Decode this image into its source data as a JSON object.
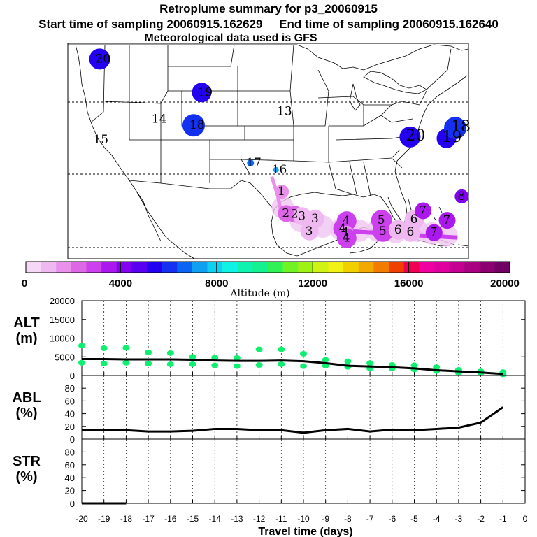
{
  "header": {
    "title": "Retroplume summary for p3_20060915",
    "sampling": "Start time of sampling 20060915.162629     End time of sampling 20060915.162640",
    "met": "Meteorological data used is GFS"
  },
  "colors": {
    "colorbar": [
      "#f6d8f6",
      "#f0b8f0",
      "#e890ea",
      "#dc68e6",
      "#cc40ee",
      "#aa18ee",
      "#8400f0",
      "#5a00f0",
      "#2400f0",
      "#1430f0",
      "#0a66f2",
      "#10a0f2",
      "#10d0f2",
      "#10f2e4",
      "#10f2b0",
      "#14f290",
      "#30f254",
      "#70f224",
      "#a0f214",
      "#d0f214",
      "#f2f014",
      "#f2d000",
      "#f2a800",
      "#f27c00",
      "#f04000",
      "#f00050",
      "#f000a0",
      "#e000a0",
      "#c40090",
      "#a80080",
      "#8c0070",
      "#700064"
    ],
    "line": "#000000",
    "green_point": "#10f070"
  },
  "map": {
    "labels": [
      {
        "text": "20",
        "lon": -121.2,
        "lat": 47.2
      },
      {
        "text": "19",
        "lon": -107.2,
        "lat": 42.3
      },
      {
        "text": "14",
        "lon": -113.5,
        "lat": 38.4
      },
      {
        "text": "13",
        "lon": -96.3,
        "lat": 39.5
      },
      {
        "text": "18",
        "lon": -108.3,
        "lat": 37.5
      },
      {
        "text": "15",
        "lon": -121.5,
        "lat": 35.4
      },
      {
        "text": "17",
        "lon": -100.5,
        "lat": 32.0
      },
      {
        "text": "16",
        "lon": -97.0,
        "lat": 31.0
      },
      {
        "text": "20",
        "lon": -78.6,
        "lat": 35.8
      },
      {
        "text": "19",
        "lon": -73.6,
        "lat": 35.6
      },
      {
        "text": "18",
        "lon": -72.4,
        "lat": 37.1
      },
      {
        "text": "1",
        "lon": -96.2,
        "lat": 27.8
      },
      {
        "text": "8",
        "lon": -71.5,
        "lat": 27.1
      },
      {
        "text": "2",
        "lon": -95.6,
        "lat": 24.6
      },
      {
        "text": "2",
        "lon": -94.4,
        "lat": 24.5
      },
      {
        "text": "3",
        "lon": -93.4,
        "lat": 24.2
      },
      {
        "text": "3",
        "lon": -91.6,
        "lat": 23.8
      },
      {
        "text": "3",
        "lon": -92.4,
        "lat": 22.0
      },
      {
        "text": "4",
        "lon": -87.3,
        "lat": 23.5
      },
      {
        "text": "4",
        "lon": -87.8,
        "lat": 22.4
      },
      {
        "text": "1",
        "lon": -87.3,
        "lat": 21.8
      },
      {
        "text": "4",
        "lon": -87.3,
        "lat": 21.0
      },
      {
        "text": "5",
        "lon": -82.5,
        "lat": 23.6
      },
      {
        "text": "5",
        "lon": -82.3,
        "lat": 22.0
      },
      {
        "text": "6",
        "lon": -80.2,
        "lat": 22.2
      },
      {
        "text": "6",
        "lon": -78.0,
        "lat": 23.7
      },
      {
        "text": "6",
        "lon": -78.5,
        "lat": 21.9
      },
      {
        "text": "7",
        "lon": -76.8,
        "lat": 25.0
      },
      {
        "text": "7",
        "lon": -73.5,
        "lat": 23.6
      },
      {
        "text": "7",
        "lon": -75.3,
        "lat": 21.8
      }
    ]
  },
  "colorbar": {
    "tick_labels": [
      "0",
      "4000",
      "8000",
      "12000",
      "16000",
      "20000"
    ],
    "axis_label": "Altitude (m)"
  },
  "chart_data": [
    {
      "type": "scatter",
      "panel": "ALT",
      "ylabel": "ALT\n(m)",
      "ylim": [
        0,
        20000
      ],
      "yticks": [
        "20000",
        "15000",
        "10000",
        "5000",
        "0"
      ],
      "x": [
        -20,
        -19,
        -18,
        -17,
        -16,
        -15,
        -14,
        -13,
        -12,
        -11,
        -10,
        -9,
        -8,
        -7,
        -6,
        -5,
        -4,
        -3,
        -2,
        -1
      ],
      "median_line": [
        4400,
        4400,
        4300,
        4300,
        4300,
        4200,
        4000,
        3900,
        3900,
        4000,
        3800,
        3300,
        2600,
        2400,
        2200,
        1900,
        1400,
        1100,
        800,
        400
      ],
      "points_upper": [
        8000,
        7300,
        7400,
        6200,
        6000,
        5000,
        4800,
        4700,
        7000,
        7000,
        5800,
        4200,
        3800,
        3300,
        2800,
        2700,
        2200,
        1500,
        1100,
        900
      ],
      "points_lower": [
        3400,
        3200,
        3400,
        3200,
        3000,
        3000,
        2700,
        2500,
        2800,
        3000,
        2500,
        2600,
        2300,
        1900,
        1900,
        1600,
        1200,
        700,
        600,
        300
      ]
    },
    {
      "type": "line",
      "panel": "ABL",
      "ylabel": "ABL\n(%)",
      "ylim": [
        0,
        100
      ],
      "yticks": [
        "80",
        "60",
        "40",
        "20",
        "0"
      ],
      "x": [
        -20,
        -19,
        -18,
        -17,
        -16,
        -15,
        -14,
        -13,
        -12,
        -11,
        -10,
        -9,
        -8,
        -7,
        -6,
        -5,
        -4,
        -3,
        -2,
        -1
      ],
      "values": [
        14,
        14,
        14,
        12,
        12,
        13,
        16,
        16,
        14,
        14,
        10,
        14,
        16,
        12,
        15,
        14,
        16,
        18,
        26,
        50
      ]
    },
    {
      "type": "line",
      "panel": "STR",
      "ylabel": "STR\n(%)",
      "ylim": [
        0,
        100
      ],
      "yticks": [
        "80",
        "60",
        "40",
        "20",
        "0"
      ],
      "x": [
        -20,
        -19,
        -18,
        -17,
        -16,
        -15,
        -14,
        -13,
        -12,
        -11,
        -10,
        -9,
        -8,
        -7,
        -6,
        -5,
        -4,
        -3,
        -2,
        -1
      ],
      "values": [
        0,
        0,
        0,
        null,
        null,
        null,
        null,
        null,
        null,
        null,
        null,
        null,
        null,
        null,
        null,
        null,
        null,
        null,
        null,
        null
      ]
    }
  ],
  "xaxis": {
    "tick_labels": [
      "-20",
      "-19",
      "-18",
      "-17",
      "-16",
      "-15",
      "-14",
      "-13",
      "-12",
      "-11",
      "-10",
      "-9",
      "-8",
      "-7",
      "-6",
      "-5",
      "-4",
      "-3",
      "-2",
      "-1",
      "0"
    ],
    "label": "Travel time (days)"
  }
}
